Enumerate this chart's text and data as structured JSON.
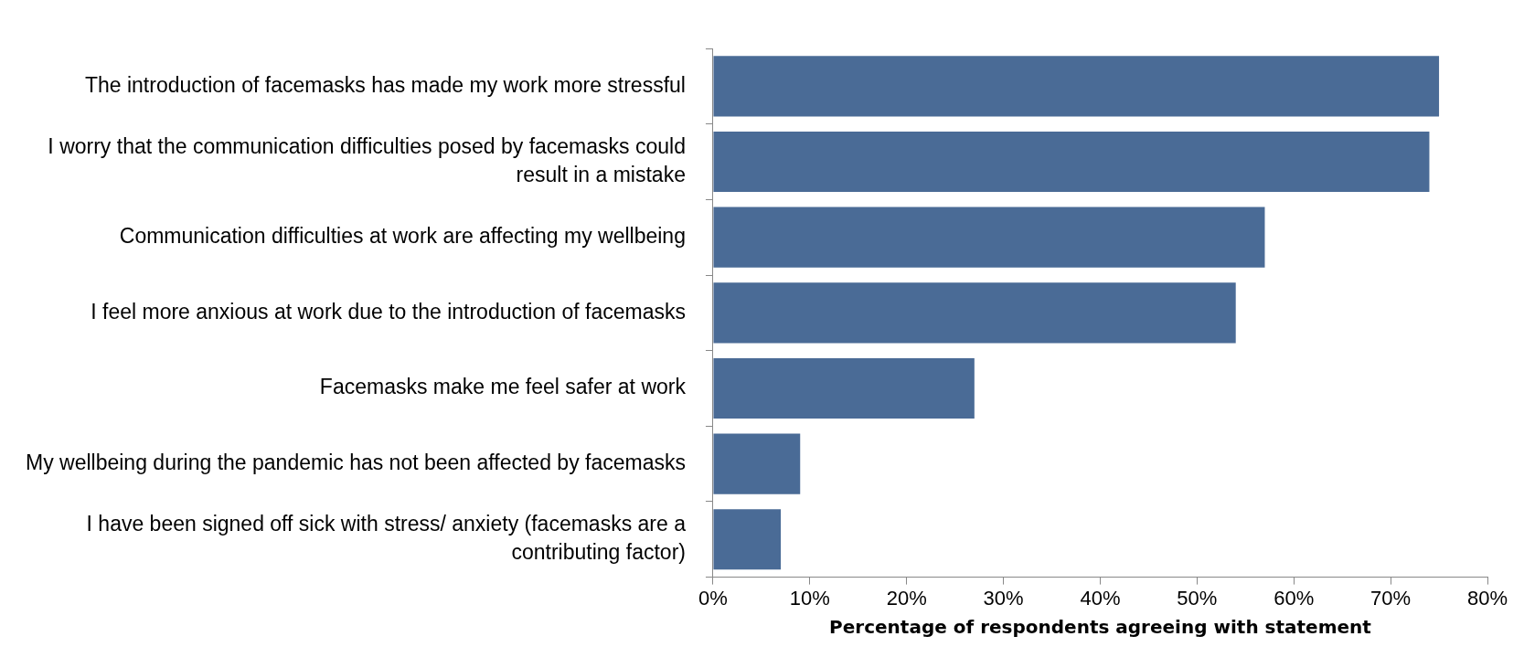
{
  "chart_data": {
    "type": "bar",
    "orientation": "horizontal",
    "xlabel": "Percentage of respondents agreeing with statement",
    "categories": [
      "The introduction of facemasks has made my work more stressful",
      "I worry that the communication difficulties posed by facemasks could result in a mistake",
      "Communication difficulties at work are affecting my wellbeing",
      "I feel more anxious at work due to the introduction of facemasks",
      "Facemasks make me feel safer at work",
      "My wellbeing during the pandemic has not been affected by facemasks",
      "I have been signed off sick with stress/ anxiety (facemasks are a contributing factor)"
    ],
    "values": [
      75,
      74,
      57,
      54,
      27,
      9,
      7
    ],
    "color": "#4a6b96",
    "xlim": [
      0,
      80
    ],
    "xticks": [
      {
        "value": 0,
        "label": "0%"
      },
      {
        "value": 10,
        "label": "10%"
      },
      {
        "value": 20,
        "label": "20%"
      },
      {
        "value": 30,
        "label": "30%"
      },
      {
        "value": 40,
        "label": "40%"
      },
      {
        "value": 50,
        "label": "50%"
      },
      {
        "value": 60,
        "label": "60%"
      },
      {
        "value": 70,
        "label": "70%"
      },
      {
        "value": 80,
        "label": "80%"
      }
    ],
    "grid": false,
    "legend": false
  }
}
